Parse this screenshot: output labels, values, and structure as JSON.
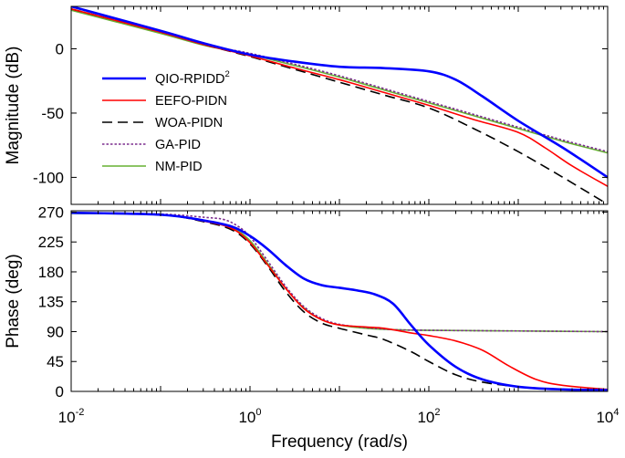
{
  "chart_data": {
    "type": "line",
    "title": "",
    "xlabel": "Frequency  (rad/s)",
    "xscale": "log10",
    "xlim_exp": [
      -2,
      4
    ],
    "x_ticks": [
      {
        "base": "10",
        "exp": "-2"
      },
      {
        "base": "10",
        "exp": "0"
      },
      {
        "base": "10",
        "exp": "2"
      },
      {
        "base": "10",
        "exp": "4"
      }
    ],
    "legend": {
      "position": "left",
      "entries": [
        {
          "key": "qio",
          "text": "QIO-RPIDD",
          "sup": "2"
        },
        {
          "key": "eefo",
          "text": "EEFO-PIDN",
          "sup": ""
        },
        {
          "key": "woa",
          "text": "WOA-PIDN",
          "sup": ""
        },
        {
          "key": "ga",
          "text": "GA-PID",
          "sup": ""
        },
        {
          "key": "nm",
          "text": "NM-PID",
          "sup": ""
        }
      ]
    },
    "series_styles": {
      "qio": {
        "name": "QIO-RPIDD2",
        "color": "#0000ff",
        "dash": "",
        "width": 2.6
      },
      "eefo": {
        "name": "EEFO-PIDN",
        "color": "#ff0000",
        "dash": "",
        "width": 1.6
      },
      "woa": {
        "name": "WOA-PIDN",
        "color": "#000000",
        "dash": "11,6",
        "width": 1.6
      },
      "ga": {
        "name": "GA-PID",
        "color": "#7b2d8e",
        "dash": "2.5,2",
        "width": 1.6
      },
      "nm": {
        "name": "NM-PID",
        "color": "#66b032",
        "dash": "",
        "width": 1.6
      }
    },
    "draw_order": [
      "nm",
      "ga",
      "woa",
      "eefo",
      "qio"
    ],
    "panels": [
      {
        "name": "magnitude",
        "ylabel": "Magnitude (dB)",
        "ylim": [
          -121,
          33
        ],
        "yticks": [
          0,
          -50,
          -100
        ],
        "ytick_labels": [
          "0",
          "-50",
          "-100"
        ],
        "series": {
          "qio": [
            [
              -2,
              33
            ],
            [
              -1,
              14
            ],
            [
              -0.5,
              4
            ],
            [
              0,
              -4.5
            ],
            [
              0.5,
              -10
            ],
            [
              1,
              -14
            ],
            [
              1.5,
              -15
            ],
            [
              2,
              -17.5
            ],
            [
              2.3,
              -24
            ],
            [
              2.6,
              -37
            ],
            [
              3,
              -56
            ],
            [
              3.5,
              -77
            ],
            [
              4,
              -100
            ]
          ],
          "eefo": [
            [
              -2,
              31
            ],
            [
              -1,
              13
            ],
            [
              -0.5,
              3
            ],
            [
              0,
              -5.5
            ],
            [
              0.5,
              -15
            ],
            [
              1,
              -24
            ],
            [
              1.5,
              -34
            ],
            [
              2,
              -44
            ],
            [
              2.5,
              -55
            ],
            [
              3,
              -65
            ],
            [
              3.3,
              -77
            ],
            [
              3.6,
              -91
            ],
            [
              4,
              -107
            ]
          ],
          "woa": [
            [
              -2,
              31
            ],
            [
              -1,
              13
            ],
            [
              -0.5,
              3
            ],
            [
              0,
              -6
            ],
            [
              0.5,
              -16
            ],
            [
              1,
              -26
            ],
            [
              1.5,
              -36
            ],
            [
              2,
              -46
            ],
            [
              2.5,
              -62
            ],
            [
              3,
              -80
            ],
            [
              3.5,
              -100
            ],
            [
              4,
              -121
            ]
          ],
          "ga": [
            [
              -2,
              31
            ],
            [
              -1,
              13
            ],
            [
              -0.5,
              3
            ],
            [
              0,
              -3.5
            ],
            [
              0.5,
              -12
            ],
            [
              1,
              -21
            ],
            [
              1.5,
              -31
            ],
            [
              2,
              -41
            ],
            [
              2.5,
              -51
            ],
            [
              3,
              -61
            ],
            [
              3.5,
              -71
            ],
            [
              4,
              -80
            ]
          ],
          "nm": [
            [
              -2,
              30
            ],
            [
              -1,
              12
            ],
            [
              -0.5,
              2.5
            ],
            [
              0,
              -4.5
            ],
            [
              0.5,
              -13
            ],
            [
              1,
              -22
            ],
            [
              1.5,
              -32
            ],
            [
              2,
              -42
            ],
            [
              2.5,
              -52
            ],
            [
              3,
              -62
            ],
            [
              3.5,
              -72
            ],
            [
              4,
              -81
            ]
          ]
        }
      },
      {
        "name": "phase",
        "ylabel": "Phase (deg)",
        "ylim": [
          0,
          272
        ],
        "yticks": [
          0,
          45,
          90,
          135,
          180,
          225,
          270
        ],
        "ytick_labels": [
          "0",
          "45",
          "90",
          "135",
          "180",
          "225",
          "270"
        ],
        "series": {
          "qio": [
            [
              -2,
              269
            ],
            [
              -1,
              266
            ],
            [
              -0.5,
              257
            ],
            [
              -0.2,
              248
            ],
            [
              0,
              234
            ],
            [
              0.2,
              214
            ],
            [
              0.4,
              190
            ],
            [
              0.6,
              170
            ],
            [
              0.8,
              160
            ],
            [
              1,
              156
            ],
            [
              1.2,
              152
            ],
            [
              1.4,
              146
            ],
            [
              1.6,
              132
            ],
            [
              1.8,
              100
            ],
            [
              2,
              70
            ],
            [
              2.3,
              37
            ],
            [
              2.6,
              18
            ],
            [
              3,
              7
            ],
            [
              3.5,
              3
            ],
            [
              4,
              2
            ]
          ],
          "eefo": [
            [
              -2,
              269
            ],
            [
              -1,
              266
            ],
            [
              -0.5,
              256
            ],
            [
              -0.2,
              245
            ],
            [
              0,
              224
            ],
            [
              0.2,
              190
            ],
            [
              0.4,
              155
            ],
            [
              0.6,
              125
            ],
            [
              0.8,
              108
            ],
            [
              1,
              100
            ],
            [
              1.3,
              97
            ],
            [
              1.5,
              95
            ],
            [
              1.8,
              88
            ],
            [
              2,
              84
            ],
            [
              2.3,
              76
            ],
            [
              2.6,
              62
            ],
            [
              2.9,
              38
            ],
            [
              3.2,
              18
            ],
            [
              3.5,
              9
            ],
            [
              4,
              3
            ]
          ],
          "woa": [
            [
              -2,
              269
            ],
            [
              -1,
              266
            ],
            [
              -0.5,
              255
            ],
            [
              -0.2,
              243
            ],
            [
              0,
              222
            ],
            [
              0.2,
              188
            ],
            [
              0.4,
              150
            ],
            [
              0.6,
              120
            ],
            [
              0.8,
              103
            ],
            [
              1,
              95
            ],
            [
              1.3,
              85
            ],
            [
              1.5,
              78
            ],
            [
              1.8,
              60
            ],
            [
              2,
              45
            ],
            [
              2.3,
              25
            ],
            [
              2.6,
              14
            ],
            [
              3,
              7
            ],
            [
              3.5,
              3
            ],
            [
              4,
              1
            ]
          ],
          "ga": [
            [
              -2,
              269
            ],
            [
              -1,
              267
            ],
            [
              -0.5,
              262
            ],
            [
              -0.3,
              259
            ],
            [
              -0.15,
              250
            ],
            [
              0,
              233
            ],
            [
              0.2,
              196
            ],
            [
              0.4,
              158
            ],
            [
              0.6,
              128
            ],
            [
              0.8,
              110
            ],
            [
              1,
              101
            ],
            [
              1.3,
              96
            ],
            [
              1.6,
              93
            ],
            [
              2,
              92
            ],
            [
              3,
              91
            ],
            [
              4,
              90
            ]
          ],
          "nm": [
            [
              -2,
              268
            ],
            [
              -1,
              266
            ],
            [
              -0.5,
              257
            ],
            [
              -0.2,
              246
            ],
            [
              0,
              227
            ],
            [
              0.2,
              192
            ],
            [
              0.4,
              155
            ],
            [
              0.6,
              126
            ],
            [
              0.8,
              108
            ],
            [
              1,
              100
            ],
            [
              1.3,
              95
            ],
            [
              1.6,
              93
            ],
            [
              2,
              92
            ],
            [
              3,
              91
            ],
            [
              4,
              90
            ]
          ]
        }
      }
    ]
  }
}
